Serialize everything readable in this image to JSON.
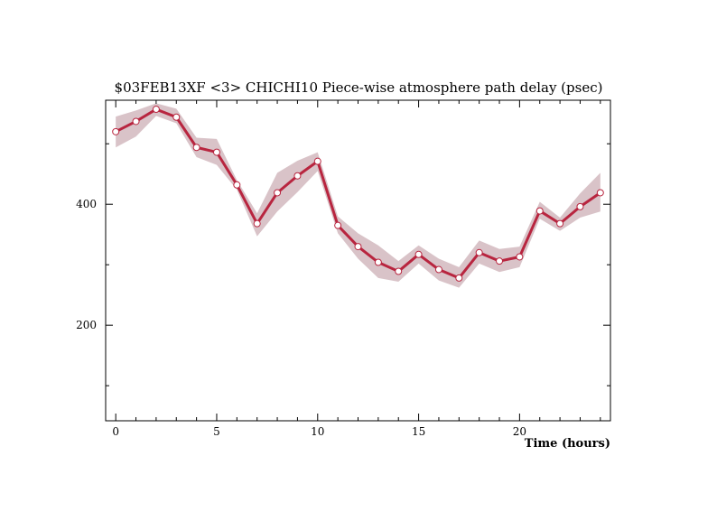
{
  "chart_data": {
    "type": "line",
    "title": "$03FEB13XF <3>  CHICHI10  Piece-wise atmosphere path delay (psec)",
    "xlabel": "Time (hours)",
    "ylabel": "",
    "xlim": [
      -0.5,
      24.5
    ],
    "ylim": [
      42,
      572
    ],
    "x_ticks": [
      0,
      5,
      10,
      15,
      20
    ],
    "y_ticks": [
      200,
      400
    ],
    "grid": false,
    "series": [
      {
        "x": [
          0,
          1,
          2,
          3,
          4,
          5,
          6,
          7,
          8,
          9,
          10,
          11,
          12,
          13,
          14,
          15,
          16,
          17,
          18,
          19,
          20,
          21,
          22,
          23,
          24
        ],
        "values": [
          520,
          537,
          557,
          544,
          494,
          486,
          432,
          368,
          419,
          447,
          471,
          365,
          330,
          304,
          289,
          317,
          292,
          278,
          320,
          306,
          313,
          389,
          368,
          396,
          419
        ],
        "upper": [
          545,
          555,
          567,
          558,
          510,
          508,
          440,
          385,
          452,
          472,
          486,
          380,
          352,
          332,
          306,
          332,
          310,
          296,
          340,
          326,
          330,
          404,
          378,
          418,
          452
        ],
        "lower": [
          494,
          512,
          546,
          534,
          478,
          465,
          424,
          347,
          388,
          420,
          455,
          352,
          310,
          278,
          272,
          302,
          274,
          262,
          302,
          288,
          296,
          376,
          356,
          378,
          388
        ]
      }
    ],
    "colors": {
      "line": "#b8253f",
      "band": "#d9c3c8",
      "marker_fill": "#ffffff"
    }
  }
}
